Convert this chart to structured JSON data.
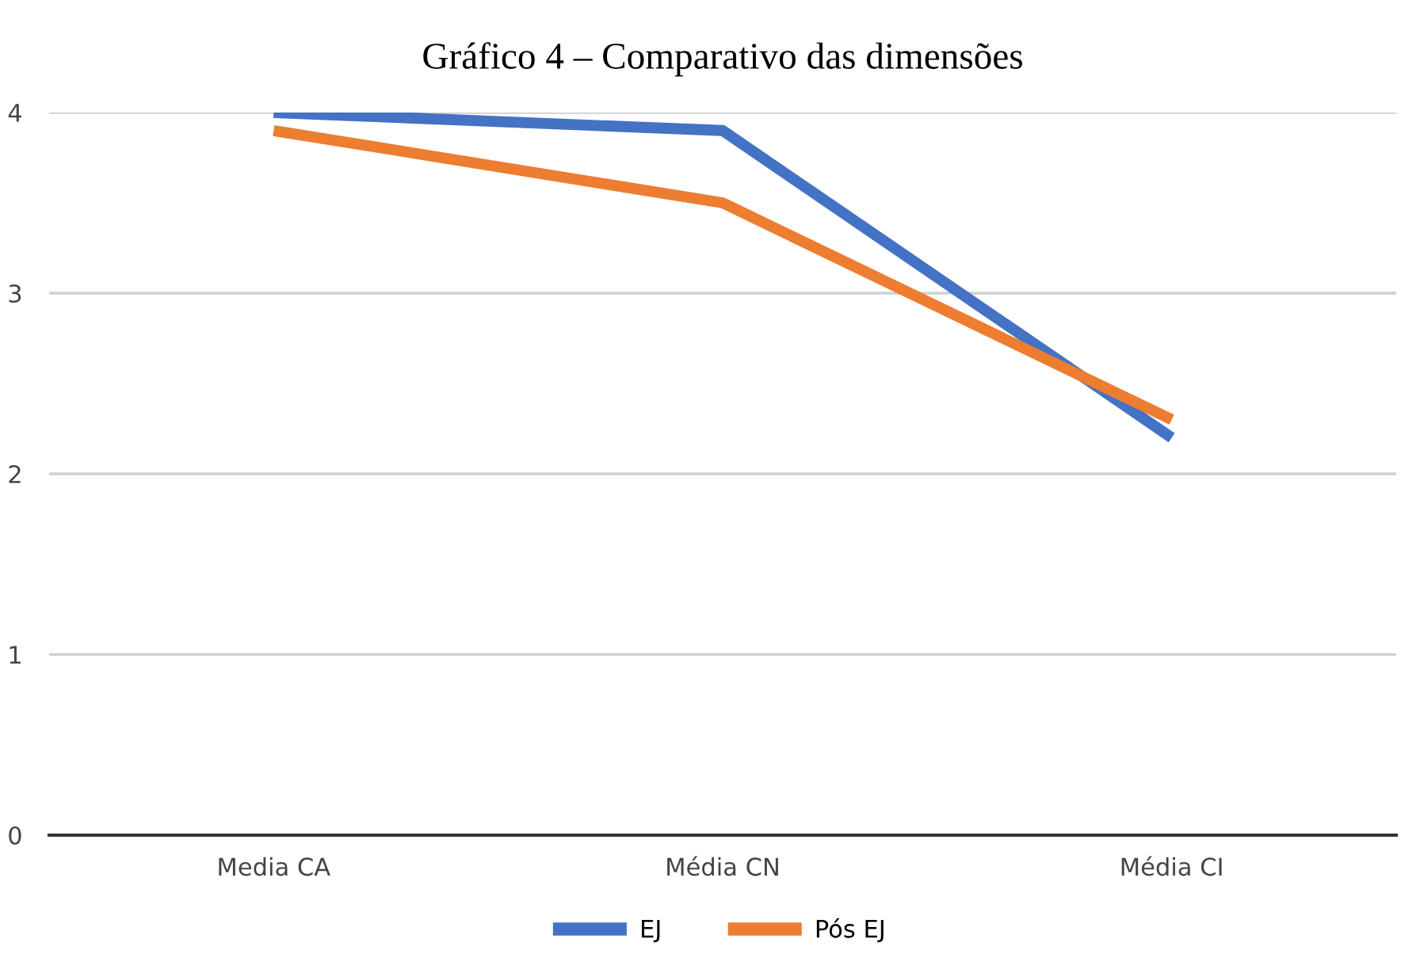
{
  "chart_data": {
    "type": "line",
    "title": "Gráfico 4 – Comparativo das dimensões",
    "categories": [
      "Media CA",
      "Média CN",
      "Média CI"
    ],
    "series": [
      {
        "name": "EJ",
        "color": "#4472c4",
        "values": [
          4.0,
          3.9,
          2.2
        ]
      },
      {
        "name": "Pós EJ",
        "color": "#ed7d31",
        "values": [
          3.9,
          3.5,
          2.3
        ]
      }
    ],
    "ylim": [
      0,
      4
    ],
    "yticks": [
      0,
      1,
      2,
      3,
      4
    ],
    "grid": "y",
    "legend": "bottom",
    "marker": "none",
    "line_style": "solid"
  }
}
